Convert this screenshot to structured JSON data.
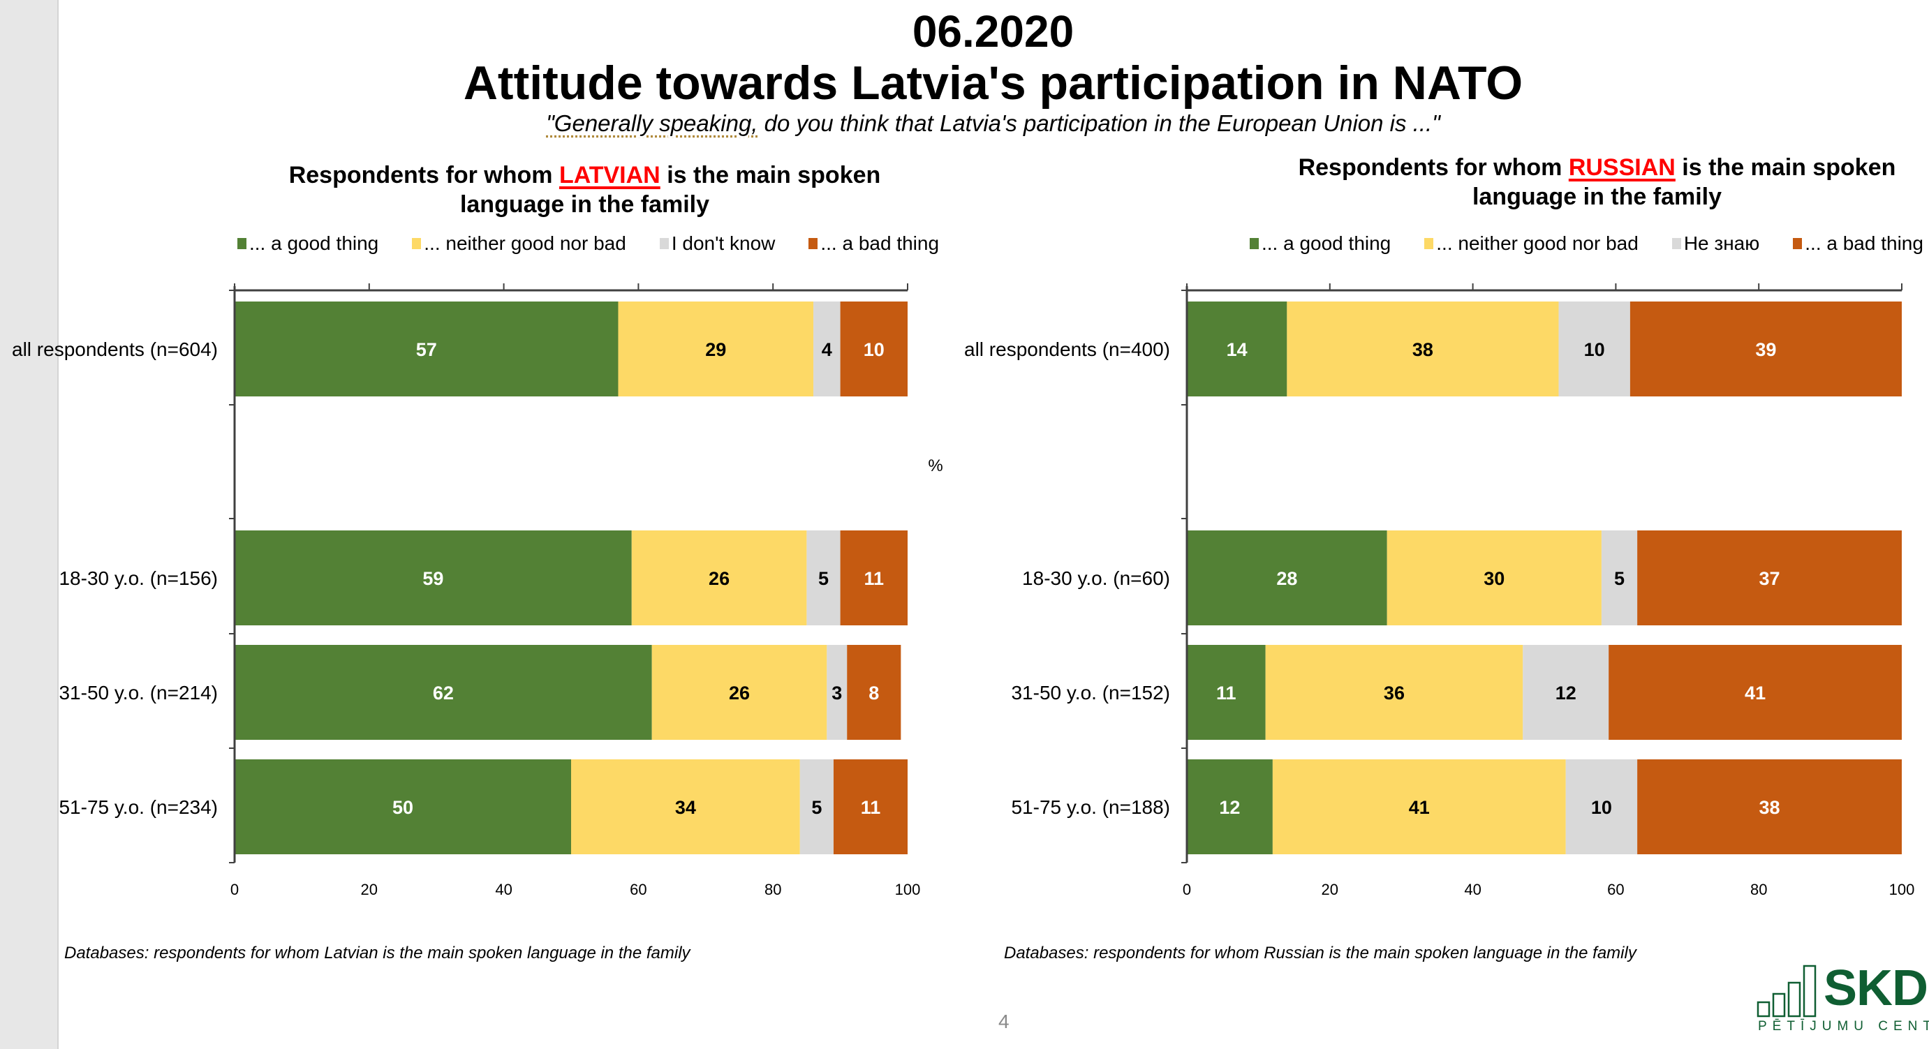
{
  "header": {
    "date": "06.2020",
    "title": "Attitude towards Latvia's participation in NATO",
    "subtitle_underlined": "\"Generally speaking,",
    "subtitle_rest": " do you think that Latvia's participation in the European Union is ...\""
  },
  "colors": {
    "good": "#538135",
    "neither": "#fdd966",
    "dontknow": "#d9d9d9",
    "bad": "#c55a11",
    "highlight": "#ff0000",
    "logo": "#0f5e32"
  },
  "chart_data": [
    {
      "type": "bar",
      "orientation": "horizontal-stacked-100",
      "title_prefix": "Respondents for whom ",
      "title_highlight": "LATVIAN",
      "title_suffix_line1": " is the main spoken",
      "title_line2": "language in the family",
      "xlim": [
        0,
        100
      ],
      "xticks": [
        "0",
        "20",
        "40",
        "60",
        "80",
        "100"
      ],
      "axis_title": "%",
      "legend": [
        "... a good thing",
        "... neither good nor bad",
        "I don't know",
        "... a bad thing"
      ],
      "legend_position": "top",
      "categories": [
        "all respondents (n=604)",
        "",
        "18-30 y.o. (n=156)",
        "31-50 y.o. (n=214)",
        "51-75 y.o. (n=234)"
      ],
      "series": [
        {
          "name": "... a good thing",
          "key": "good",
          "values": [
            57,
            null,
            59,
            62,
            50
          ]
        },
        {
          "name": "... neither good nor bad",
          "key": "neither",
          "values": [
            29,
            null,
            26,
            26,
            34
          ]
        },
        {
          "name": "I don't know",
          "key": "dontknow",
          "values": [
            4,
            null,
            5,
            3,
            5
          ]
        },
        {
          "name": "... a bad thing",
          "key": "bad",
          "values": [
            10,
            null,
            11,
            8,
            11
          ]
        }
      ],
      "footnote": "Databases: respondents for whom Latvian is the main spoken language in the family"
    },
    {
      "type": "bar",
      "orientation": "horizontal-stacked-100",
      "title_prefix": "Respondents for whom ",
      "title_highlight": "RUSSIAN",
      "title_suffix_line1": " is the main spoken",
      "title_line2": "language in the family",
      "xlim": [
        0,
        100
      ],
      "xticks": [
        "0",
        "20",
        "40",
        "60",
        "80",
        "100"
      ],
      "legend": [
        "... a good thing",
        "... neither good nor bad",
        "Не знаю",
        "... a bad thing"
      ],
      "legend_position": "top",
      "categories": [
        "all respondents (n=400)",
        "",
        "18-30 y.o. (n=60)",
        "31-50 y.o. (n=152)",
        "51-75 y.o. (n=188)"
      ],
      "series": [
        {
          "name": "... a good thing",
          "key": "good",
          "values": [
            14,
            null,
            28,
            11,
            12
          ]
        },
        {
          "name": "... neither good nor bad",
          "key": "neither",
          "values": [
            38,
            null,
            30,
            36,
            41
          ]
        },
        {
          "name": "Не знаю",
          "key": "dontknow",
          "values": [
            10,
            null,
            5,
            12,
            10
          ]
        },
        {
          "name": "... a bad thing",
          "key": "bad",
          "values": [
            39,
            null,
            37,
            41,
            38
          ]
        }
      ],
      "footnote": "Databases: respondents for whom Russian is the main spoken language in the family"
    }
  ],
  "footer": {
    "page_number": "4",
    "logo_word": "SKDS",
    "logo_sub": "PĒTĪJUMU CENTRS"
  }
}
